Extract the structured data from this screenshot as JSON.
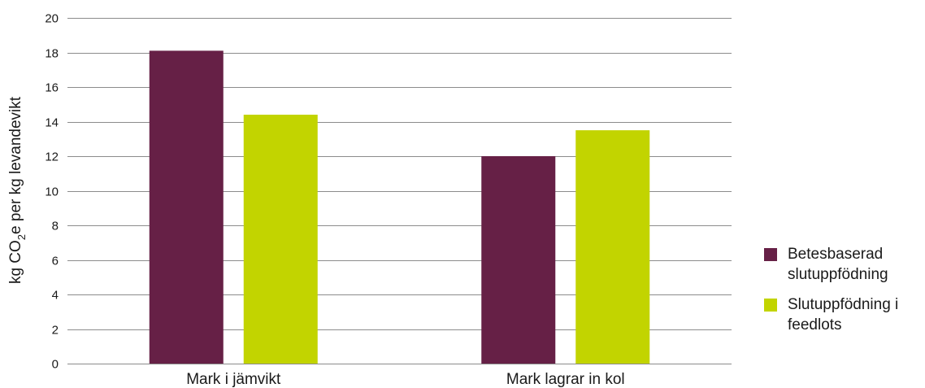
{
  "chart_data": {
    "type": "bar",
    "title": "",
    "ylabel": {
      "prefix": "kg CO",
      "subscript": "2",
      "suffix": "e per kg levandevikt"
    },
    "xlabel": "",
    "ylim": [
      0,
      20
    ],
    "yticks": [
      0,
      2,
      4,
      6,
      8,
      10,
      12,
      14,
      16,
      18,
      20
    ],
    "grid": true,
    "legend_position": "right",
    "categories": [
      "Mark i jämvikt",
      "Mark lagrar in kol"
    ],
    "series": [
      {
        "name": "Betesbaserad slutuppfödning",
        "color": "#662046",
        "values": [
          18.1,
          12.0
        ]
      },
      {
        "name": "Slutuppfödning i feedlots",
        "color": "#c2d400",
        "values": [
          14.4,
          13.5
        ]
      }
    ]
  },
  "legend": [
    {
      "line1": "Betesbaserad",
      "line2": "slutuppfödning"
    },
    {
      "line1": "Slutuppfödning i",
      "line2": "feedlots"
    }
  ]
}
